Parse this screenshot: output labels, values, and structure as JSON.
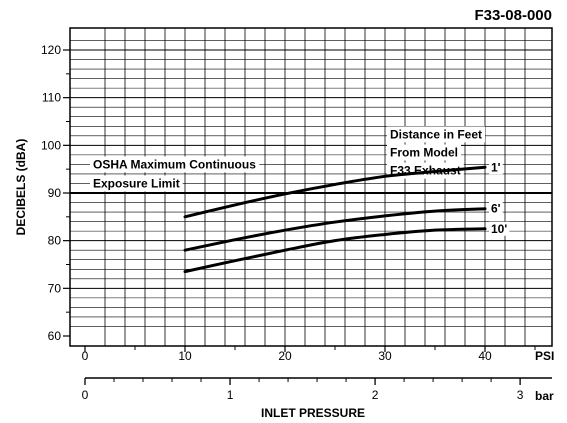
{
  "figure_id": "F33-08-000",
  "chart_data": {
    "type": "line",
    "ylabel": "DECIBELS (dBA)",
    "xlabel": "INLET PRESSURE",
    "x_unit": "PSI",
    "x2_unit": "bar",
    "xlim": [
      0,
      46
    ],
    "ylim": [
      60,
      124
    ],
    "x_ticks": [
      0,
      10,
      20,
      30,
      40
    ],
    "x2_ticks": [
      0,
      1,
      2,
      3
    ],
    "y_ticks": [
      60,
      70,
      80,
      90,
      100,
      110,
      120
    ],
    "grid": true,
    "reference_line": {
      "y": 90,
      "label_lines": [
        "OSHA Maximum Continuous",
        "Exposure Limit"
      ]
    },
    "legend_note_lines": [
      "Distance in Feet",
      "From Model",
      "F33 Exhaust"
    ],
    "series": [
      {
        "name": "1'",
        "x": [
          10,
          15,
          20,
          25,
          30,
          35,
          40
        ],
        "y": [
          85,
          87.5,
          89.8,
          91.8,
          93.5,
          94.5,
          95.4
        ]
      },
      {
        "name": "6'",
        "x": [
          10,
          15,
          20,
          25,
          30,
          35,
          40
        ],
        "y": [
          78,
          80.2,
          82.2,
          83.9,
          85.2,
          86.2,
          86.7
        ]
      },
      {
        "name": "10'",
        "x": [
          10,
          15,
          20,
          25,
          30,
          35,
          40
        ],
        "y": [
          73.5,
          75.8,
          78,
          80,
          81.3,
          82.2,
          82.5
        ]
      }
    ]
  }
}
